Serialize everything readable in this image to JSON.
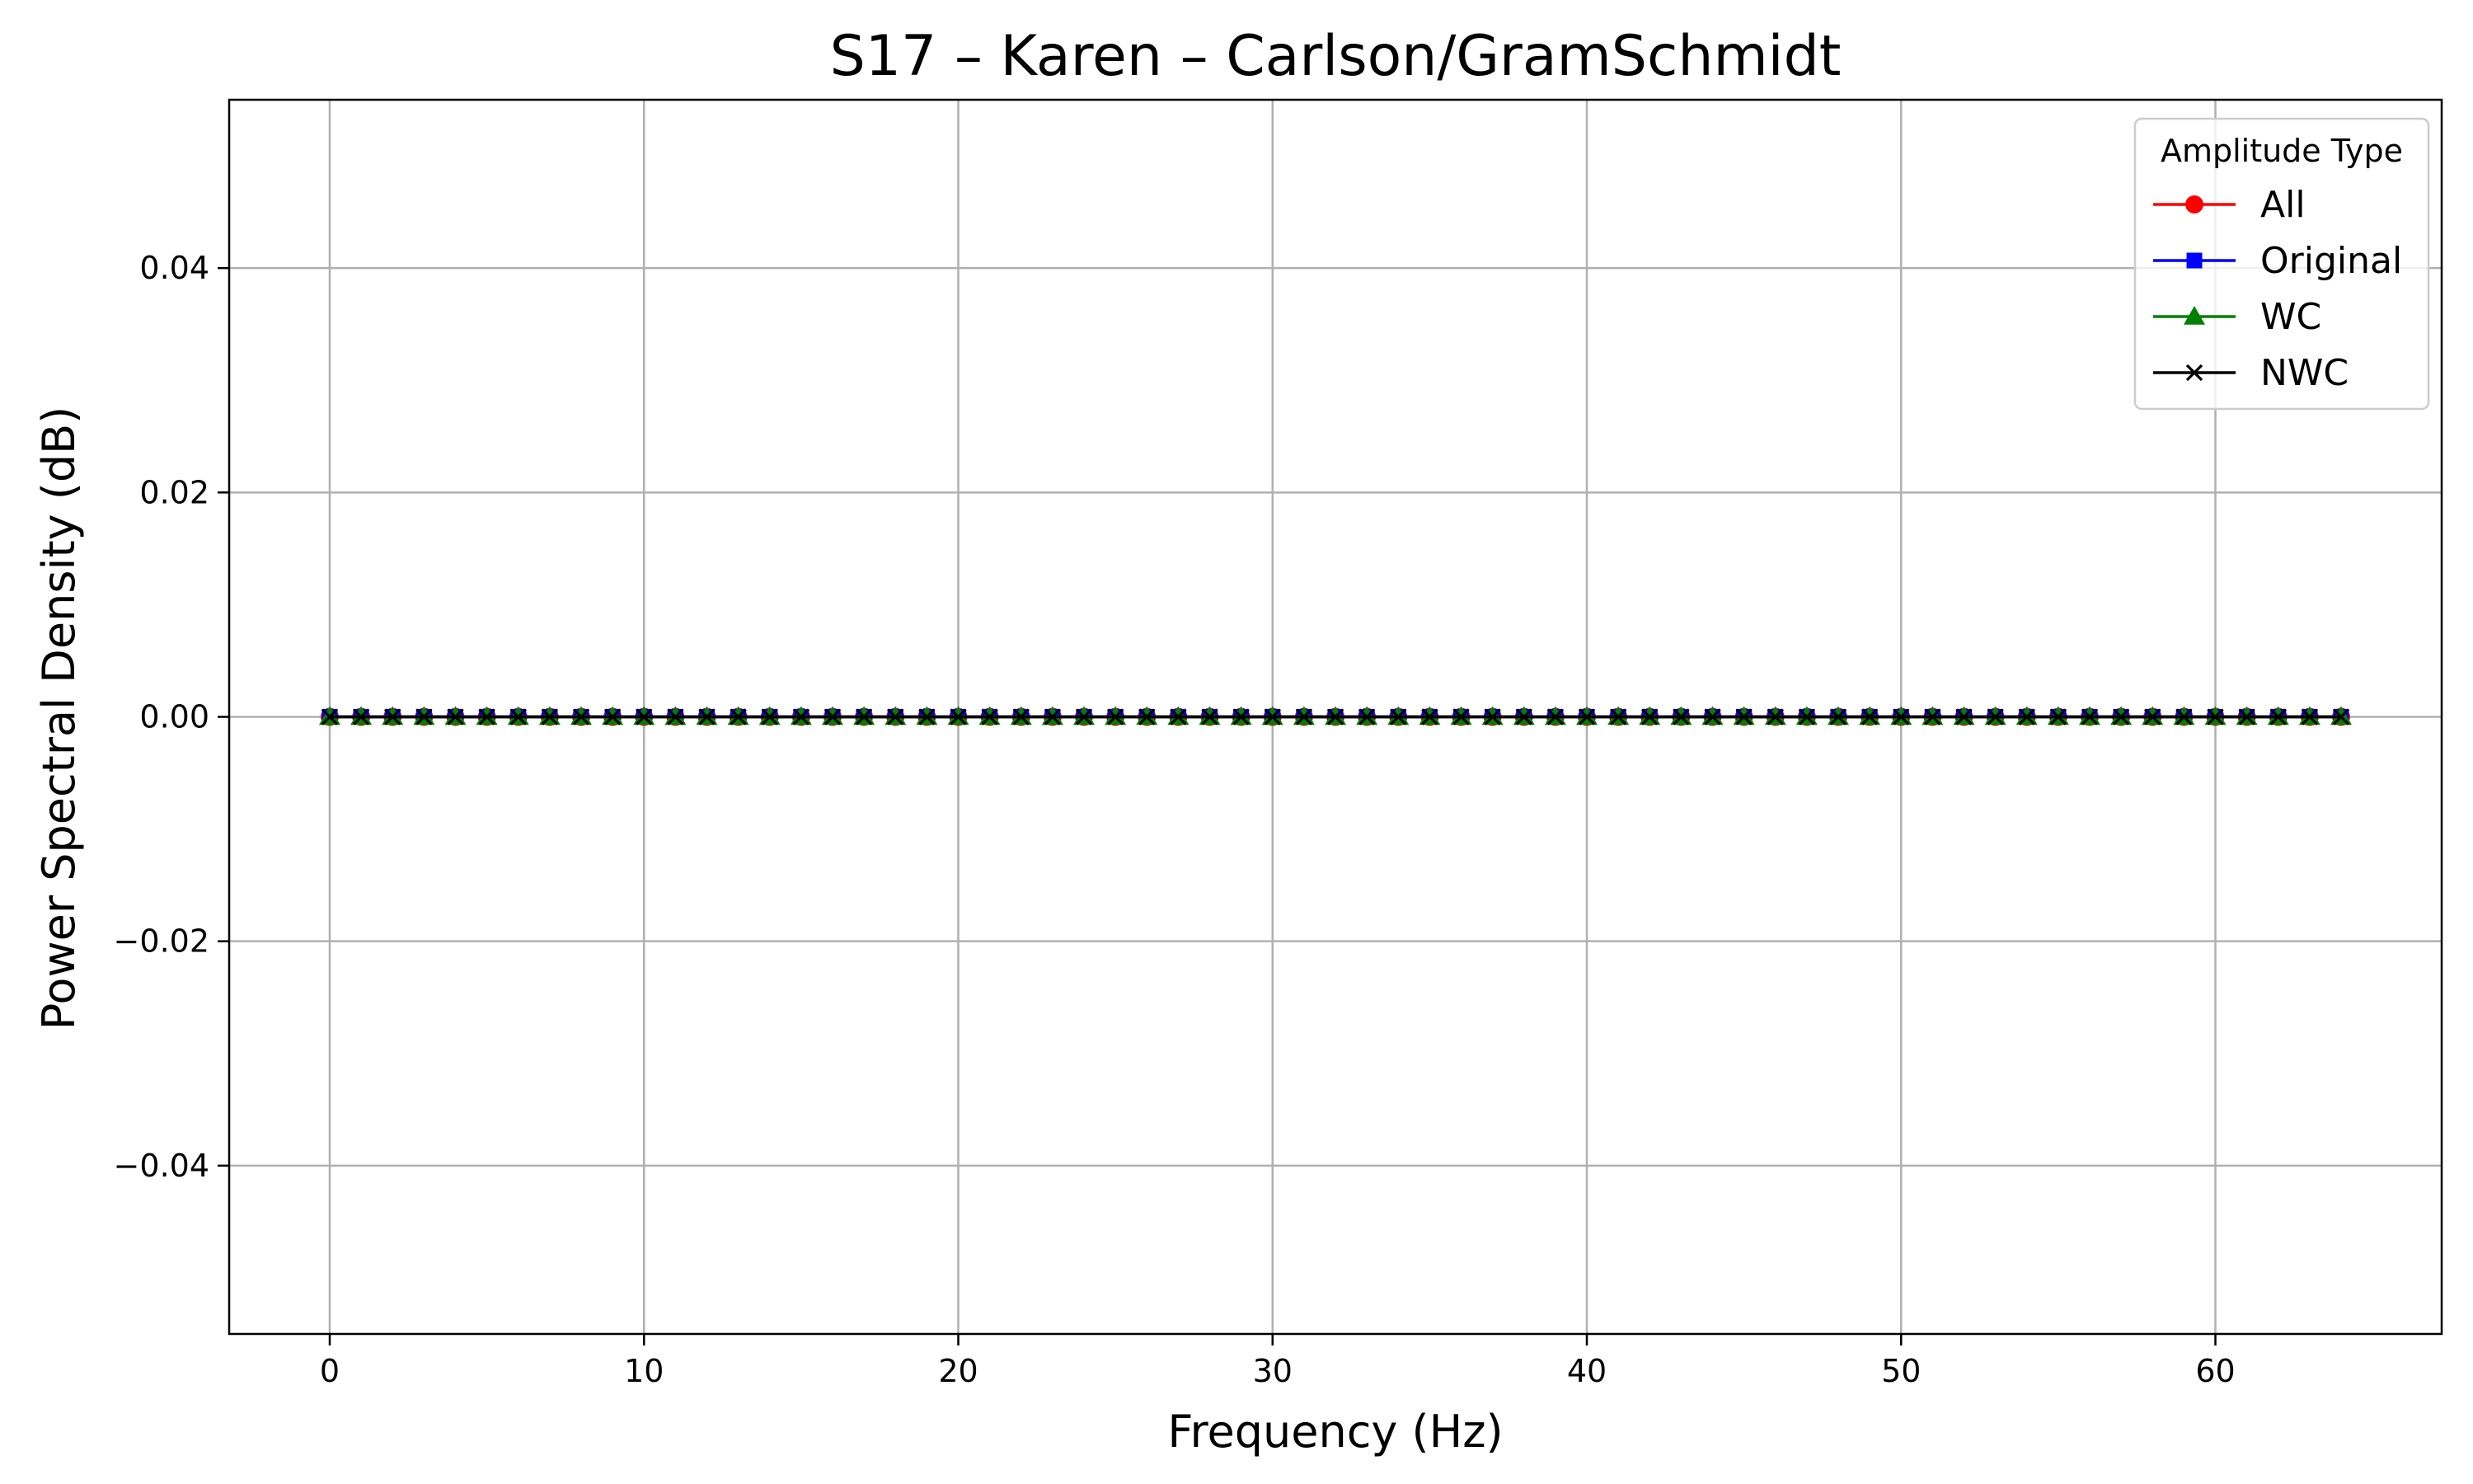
{
  "chart_data": {
    "type": "line",
    "title": "S17 – Karen – Carlson/GramSchmidt",
    "xlabel": "Frequency (Hz)",
    "ylabel": "Power Spectral Density (dB)",
    "xlim": [
      -3.2,
      67.2
    ],
    "ylim": [
      -0.055,
      0.055
    ],
    "xticks": [
      0,
      10,
      20,
      30,
      40,
      50,
      60
    ],
    "xtick_labels": [
      "0",
      "10",
      "20",
      "30",
      "40",
      "50",
      "60"
    ],
    "yticks": [
      -0.04,
      -0.02,
      0.0,
      0.02,
      0.04
    ],
    "ytick_labels": [
      "−0.04",
      "−0.02",
      "0.00",
      "0.02",
      "0.04"
    ],
    "grid": true,
    "legend": {
      "title": "Amplitude Type",
      "placement": "top-right"
    },
    "x": [
      0,
      1,
      2,
      3,
      4,
      5,
      6,
      7,
      8,
      9,
      10,
      11,
      12,
      13,
      14,
      15,
      16,
      17,
      18,
      19,
      20,
      21,
      22,
      23,
      24,
      25,
      26,
      27,
      28,
      29,
      30,
      31,
      32,
      33,
      34,
      35,
      36,
      37,
      38,
      39,
      40,
      41,
      42,
      43,
      44,
      45,
      46,
      47,
      48,
      49,
      50,
      51,
      52,
      53,
      54,
      55,
      56,
      57,
      58,
      59,
      60,
      61,
      62,
      63,
      64
    ],
    "series": [
      {
        "name": "All",
        "color": "#ff0000",
        "marker": "circle",
        "values": [
          0,
          0,
          0,
          0,
          0,
          0,
          0,
          0,
          0,
          0,
          0,
          0,
          0,
          0,
          0,
          0,
          0,
          0,
          0,
          0,
          0,
          0,
          0,
          0,
          0,
          0,
          0,
          0,
          0,
          0,
          0,
          0,
          0,
          0,
          0,
          0,
          0,
          0,
          0,
          0,
          0,
          0,
          0,
          0,
          0,
          0,
          0,
          0,
          0,
          0,
          0,
          0,
          0,
          0,
          0,
          0,
          0,
          0,
          0,
          0,
          0,
          0,
          0,
          0,
          0
        ]
      },
      {
        "name": "Original",
        "color": "#0000ff",
        "marker": "square",
        "values": [
          0,
          0,
          0,
          0,
          0,
          0,
          0,
          0,
          0,
          0,
          0,
          0,
          0,
          0,
          0,
          0,
          0,
          0,
          0,
          0,
          0,
          0,
          0,
          0,
          0,
          0,
          0,
          0,
          0,
          0,
          0,
          0,
          0,
          0,
          0,
          0,
          0,
          0,
          0,
          0,
          0,
          0,
          0,
          0,
          0,
          0,
          0,
          0,
          0,
          0,
          0,
          0,
          0,
          0,
          0,
          0,
          0,
          0,
          0,
          0,
          0,
          0,
          0,
          0,
          0
        ]
      },
      {
        "name": "WC",
        "color": "#008000",
        "marker": "triangle",
        "values": [
          0,
          0,
          0,
          0,
          0,
          0,
          0,
          0,
          0,
          0,
          0,
          0,
          0,
          0,
          0,
          0,
          0,
          0,
          0,
          0,
          0,
          0,
          0,
          0,
          0,
          0,
          0,
          0,
          0,
          0,
          0,
          0,
          0,
          0,
          0,
          0,
          0,
          0,
          0,
          0,
          0,
          0,
          0,
          0,
          0,
          0,
          0,
          0,
          0,
          0,
          0,
          0,
          0,
          0,
          0,
          0,
          0,
          0,
          0,
          0,
          0,
          0,
          0,
          0,
          0
        ]
      },
      {
        "name": "NWC",
        "color": "#000000",
        "marker": "x",
        "values": [
          0,
          0,
          0,
          0,
          0,
          0,
          0,
          0,
          0,
          0,
          0,
          0,
          0,
          0,
          0,
          0,
          0,
          0,
          0,
          0,
          0,
          0,
          0,
          0,
          0,
          0,
          0,
          0,
          0,
          0,
          0,
          0,
          0,
          0,
          0,
          0,
          0,
          0,
          0,
          0,
          0,
          0,
          0,
          0,
          0,
          0,
          0,
          0,
          0,
          0,
          0,
          0,
          0,
          0,
          0,
          0,
          0,
          0,
          0,
          0,
          0,
          0,
          0,
          0,
          0
        ]
      }
    ]
  }
}
